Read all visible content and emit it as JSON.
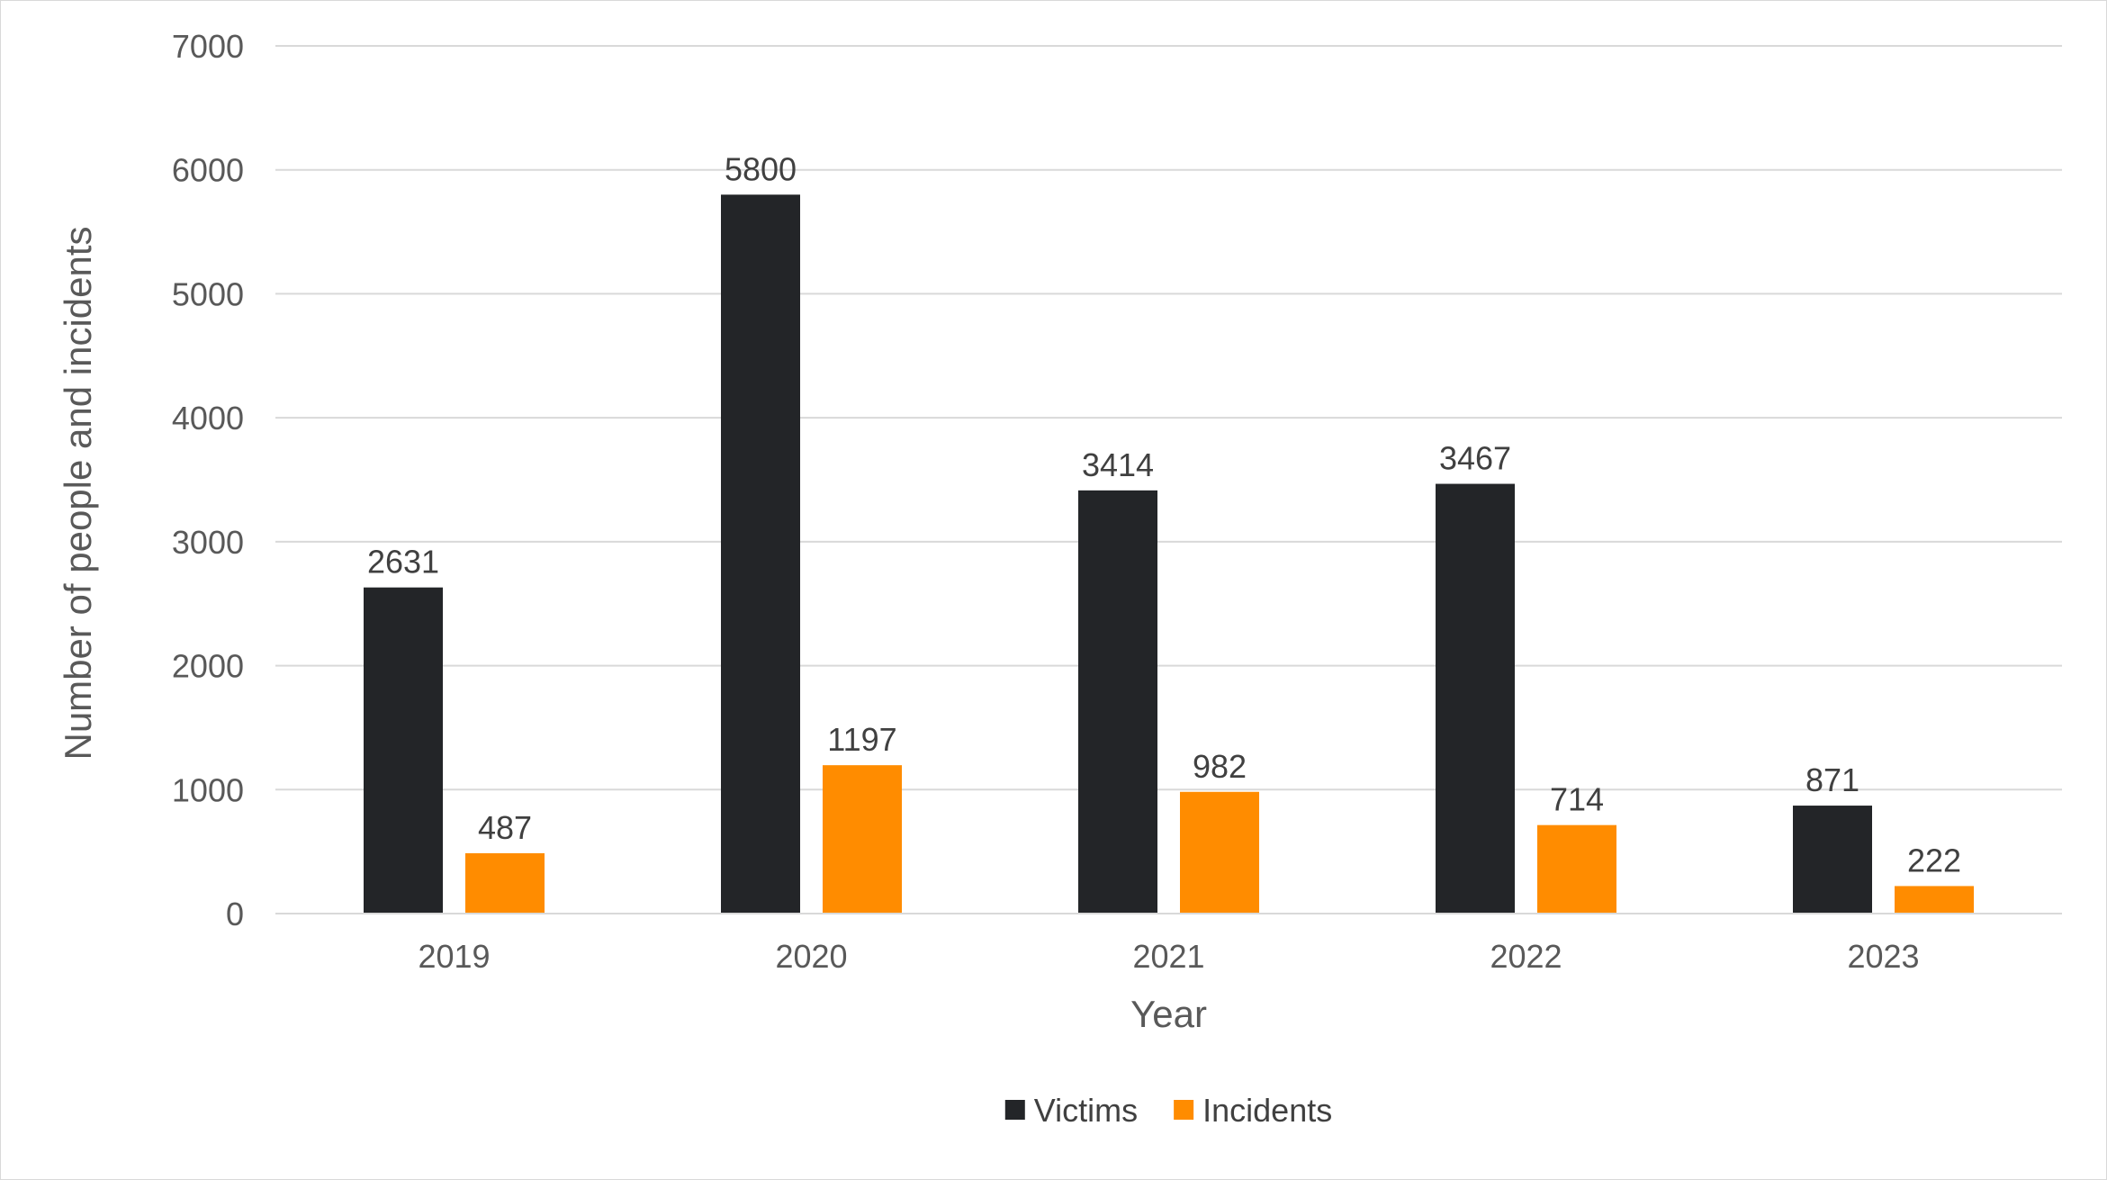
{
  "chart_data": {
    "type": "bar",
    "title": "",
    "xlabel": "Year",
    "ylabel": "Number of people and incidents",
    "categories": [
      "2019",
      "2020",
      "2021",
      "2022",
      "2023"
    ],
    "series": [
      {
        "name": "Victims",
        "values": [
          2631,
          5800,
          3414,
          3467,
          871
        ],
        "color": "#232528"
      },
      {
        "name": "Incidents",
        "values": [
          487,
          1197,
          982,
          714,
          222
        ],
        "color": "#ff8c00"
      }
    ],
    "ylim": [
      0,
      7000
    ],
    "yticks": [
      0,
      1000,
      2000,
      3000,
      4000,
      5000,
      6000,
      7000
    ],
    "grid": true,
    "data_labels": true,
    "legend_position": "bottom"
  }
}
